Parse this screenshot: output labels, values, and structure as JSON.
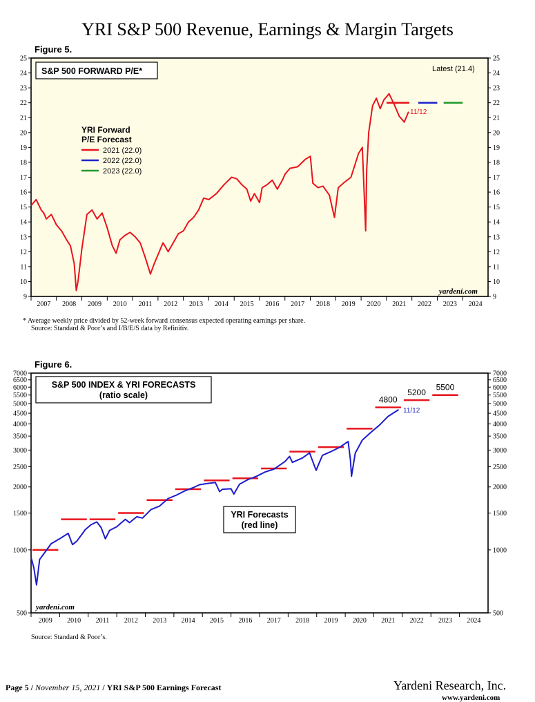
{
  "page_title": "YRI S&P 500 Revenue, Earnings & Margin Targets",
  "figure5": {
    "label": "Figure 5.",
    "note_line1": "*   Average weekly price divided by 52-week forward consensus expected operating earnings per share.",
    "note_line2": "Source: Standard & Poor’s and I/B/E/S data by Refinitiv."
  },
  "figure6": {
    "label": "Figure 6.",
    "note": "Source: Standard & Poor’s."
  },
  "footer": {
    "page_prefix": "Page 5 /",
    "date": "November 15, 2021",
    "report": "YRI S&P 500 Earnings Forecast",
    "company": "Yardeni Research, Inc.",
    "url": "www.yardeni.com"
  },
  "chart_data": [
    {
      "type": "line",
      "title": "S&P 500 FORWARD P/E*",
      "latest": "Latest (21.4)",
      "watermark": "yardeni.com",
      "date_label": "11/12",
      "legend_title_1": "YRI Forward",
      "legend_title_2": "P/E Forecast",
      "ylim": [
        9,
        25
      ],
      "yticks": [
        "9",
        "10",
        "11",
        "12",
        "13",
        "14",
        "15",
        "16",
        "17",
        "18",
        "19",
        "20",
        "21",
        "22",
        "23",
        "24",
        "25"
      ],
      "xlim": [
        2007,
        2025
      ],
      "xticks": [
        "2007",
        "2008",
        "2009",
        "2010",
        "2011",
        "2012",
        "2013",
        "2014",
        "2015",
        "2016",
        "2017",
        "2018",
        "2019",
        "2020",
        "2021",
        "2022",
        "2023",
        "2024"
      ],
      "grid": false,
      "legend_position": "top-left",
      "series": [
        {
          "name": "Forward P/E",
          "color": "#e8141c",
          "x": [
            2007.0,
            2007.2,
            2007.4,
            2007.5,
            2007.6,
            2007.8,
            2008.0,
            2008.2,
            2008.4,
            2008.55,
            2008.7,
            2008.78,
            2008.85,
            2009.0,
            2009.2,
            2009.4,
            2009.6,
            2009.8,
            2010.0,
            2010.2,
            2010.35,
            2010.5,
            2010.7,
            2010.9,
            2011.1,
            2011.3,
            2011.5,
            2011.7,
            2011.85,
            2012.0,
            2012.2,
            2012.4,
            2012.6,
            2012.8,
            2013.0,
            2013.2,
            2013.4,
            2013.6,
            2013.8,
            2014.0,
            2014.3,
            2014.6,
            2014.9,
            2015.1,
            2015.3,
            2015.5,
            2015.65,
            2015.8,
            2016.0,
            2016.1,
            2016.3,
            2016.5,
            2016.7,
            2016.9,
            2017.0,
            2017.2,
            2017.5,
            2017.8,
            2018.0,
            2018.1,
            2018.3,
            2018.5,
            2018.75,
            2018.95,
            2019.1,
            2019.3,
            2019.6,
            2019.9,
            2020.05,
            2020.18,
            2020.22,
            2020.3,
            2020.45,
            2020.6,
            2020.75,
            2020.9,
            2021.1,
            2021.3,
            2021.5,
            2021.7,
            2021.87
          ],
          "values": [
            15.1,
            15.5,
            14.8,
            14.6,
            14.2,
            14.5,
            13.8,
            13.4,
            12.8,
            12.4,
            11.2,
            9.4,
            10.0,
            12.2,
            14.5,
            14.8,
            14.2,
            14.6,
            13.6,
            12.4,
            11.9,
            12.8,
            13.1,
            13.3,
            13.0,
            12.6,
            11.6,
            10.5,
            11.2,
            11.8,
            12.6,
            12.0,
            12.6,
            13.2,
            13.4,
            14.0,
            14.3,
            14.8,
            15.6,
            15.5,
            15.9,
            16.5,
            17.0,
            16.9,
            16.5,
            16.2,
            15.4,
            15.9,
            15.3,
            16.3,
            16.5,
            16.8,
            16.2,
            16.8,
            17.2,
            17.6,
            17.7,
            18.2,
            18.4,
            16.6,
            16.3,
            16.4,
            15.8,
            14.3,
            16.3,
            16.6,
            17.0,
            18.6,
            19.0,
            13.4,
            17.5,
            20.0,
            21.8,
            22.3,
            21.6,
            22.2,
            22.6,
            21.9,
            21.1,
            20.7,
            21.4
          ]
        }
      ],
      "forecasts": [
        {
          "name": "2021 (22.0)",
          "color": "#e8141c",
          "value": 22.0,
          "x_start": 2021.0,
          "x_end": 2021.9
        },
        {
          "name": "2022 (22.0)",
          "color": "#1c22cc",
          "value": 22.0,
          "x_start": 2022.25,
          "x_end": 2023.0
        },
        {
          "name": "2023 (22.0)",
          "color": "#1e9a2c",
          "value": 22.0,
          "x_start": 2023.25,
          "x_end": 2024.0
        }
      ]
    },
    {
      "type": "line",
      "title": "S&P 500 INDEX & YRI FORECASTS",
      "subtitle": "(ratio scale)",
      "watermark": "yardeni.com",
      "date_label": "11/12",
      "callout": "YRI Forecasts",
      "callout_2": "(red line)",
      "scale": "log",
      "ylim": [
        500,
        7000
      ],
      "yticks": [
        "500",
        "1000",
        "1500",
        "2000",
        "2500",
        "3000",
        "3500",
        "4000",
        "4500",
        "5000",
        "5500",
        "6000",
        "6500",
        "7000"
      ],
      "xlim": [
        2009,
        2025
      ],
      "xticks": [
        "2009",
        "2010",
        "2011",
        "2012",
        "2013",
        "2014",
        "2015",
        "2016",
        "2017",
        "2018",
        "2019",
        "2020",
        "2021",
        "2022",
        "2023",
        "2024"
      ],
      "grid": false,
      "series": [
        {
          "name": "S&P 500",
          "color": "#1c1ccc",
          "x": [
            2009.0,
            2009.1,
            2009.19,
            2009.3,
            2009.5,
            2009.7,
            2010.0,
            2010.3,
            2010.45,
            2010.6,
            2010.9,
            2011.1,
            2011.3,
            2011.45,
            2011.6,
            2011.75,
            2012.0,
            2012.3,
            2012.45,
            2012.7,
            2012.9,
            2013.2,
            2013.5,
            2013.8,
            2014.1,
            2014.4,
            2014.7,
            2014.9,
            2015.2,
            2015.45,
            2015.6,
            2015.7,
            2016.0,
            2016.1,
            2016.3,
            2016.6,
            2016.9,
            2017.2,
            2017.5,
            2017.9,
            2018.05,
            2018.15,
            2018.5,
            2018.75,
            2018.98,
            2019.2,
            2019.5,
            2019.8,
            2020.1,
            2020.18,
            2020.22,
            2020.35,
            2020.6,
            2020.9,
            2021.2,
            2021.5,
            2021.87
          ],
          "values": [
            920,
            820,
            680,
            900,
            980,
            1070,
            1130,
            1200,
            1060,
            1100,
            1250,
            1320,
            1360,
            1280,
            1130,
            1240,
            1290,
            1400,
            1350,
            1440,
            1420,
            1560,
            1620,
            1760,
            1830,
            1920,
            1990,
            2050,
            2080,
            2100,
            1900,
            1950,
            1960,
            1850,
            2060,
            2170,
            2250,
            2360,
            2430,
            2650,
            2800,
            2620,
            2750,
            2910,
            2400,
            2830,
            2950,
            3090,
            3300,
            2700,
            2250,
            2900,
            3350,
            3650,
            3950,
            4350,
            4680
          ]
        }
      ],
      "forecasts": [
        {
          "label": "",
          "value": 1000,
          "x_start": 2009.0,
          "x_end": 2010.0
        },
        {
          "label": "",
          "value": 1400,
          "x_start": 2010.0,
          "x_end": 2011.0
        },
        {
          "label": "",
          "value": 1400,
          "x_start": 2011.0,
          "x_end": 2012.0
        },
        {
          "label": "",
          "value": 1500,
          "x_start": 2012.0,
          "x_end": 2013.0
        },
        {
          "label": "",
          "value": 1730,
          "x_start": 2013.0,
          "x_end": 2014.0
        },
        {
          "label": "",
          "value": 1950,
          "x_start": 2014.0,
          "x_end": 2015.0
        },
        {
          "label": "",
          "value": 2150,
          "x_start": 2015.0,
          "x_end": 2016.0
        },
        {
          "label": "",
          "value": 2200,
          "x_start": 2016.0,
          "x_end": 2017.0
        },
        {
          "label": "",
          "value": 2450,
          "x_start": 2017.0,
          "x_end": 2018.0
        },
        {
          "label": "",
          "value": 2950,
          "x_start": 2018.0,
          "x_end": 2019.0
        },
        {
          "label": "",
          "value": 3100,
          "x_start": 2019.0,
          "x_end": 2020.0
        },
        {
          "label": "",
          "value": 3800,
          "x_start": 2020.0,
          "x_end": 2021.0
        },
        {
          "label": "4800",
          "value": 4800,
          "x_start": 2021.0,
          "x_end": 2022.0
        },
        {
          "label": "5200",
          "value": 5200,
          "x_start": 2022.0,
          "x_end": 2023.0
        },
        {
          "label": "5500",
          "value": 5500,
          "x_start": 2023.0,
          "x_end": 2024.0
        }
      ],
      "forecast_color": "#e8141c"
    }
  ]
}
